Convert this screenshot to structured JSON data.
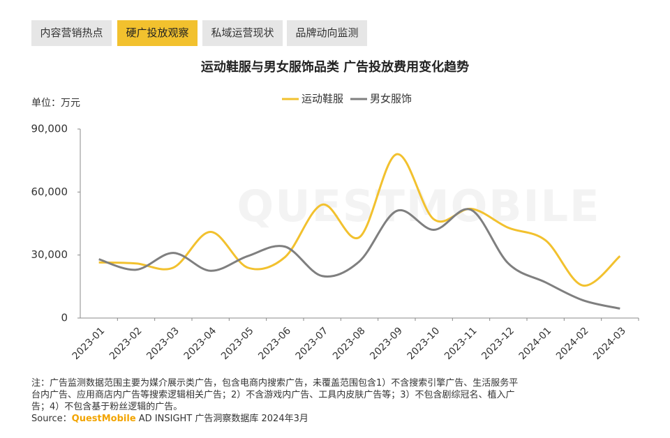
{
  "tabs": [
    {
      "label": "内容营销热点",
      "active": false
    },
    {
      "label": "硬广投放观察",
      "active": true
    },
    {
      "label": "私域运营现状",
      "active": false
    },
    {
      "label": "品牌动向监测",
      "active": false
    }
  ],
  "watermark": "QUESTMOBILE",
  "chart_data": {
    "type": "line",
    "title": "运动鞋服与男女服饰品类 广告投放费用变化趋势",
    "unit": "单位：万元",
    "categories": [
      "2023-01",
      "2023-02",
      "2023-03",
      "2023-04",
      "2023-05",
      "2023-06",
      "2023-07",
      "2023-08",
      "2023-09",
      "2023-10",
      "2023-11",
      "2023-12",
      "2024-01",
      "2024-02",
      "2024-03"
    ],
    "series": [
      {
        "name": "运动鞋服",
        "color": "#f2c12e",
        "values": [
          26500,
          26000,
          24000,
          41000,
          24000,
          29000,
          54000,
          38500,
          78000,
          47000,
          52000,
          43000,
          37000,
          15500,
          29500
        ]
      },
      {
        "name": "男女服饰",
        "color": "#7f7f7f",
        "values": [
          28000,
          23000,
          31000,
          22500,
          29500,
          34000,
          20000,
          27000,
          51000,
          42000,
          51500,
          26000,
          17000,
          8500,
          4500
        ]
      }
    ],
    "ylim": [
      0,
      90000
    ],
    "yticks": [
      0,
      {
        "value": 30000,
        "label": "30,000"
      },
      {
        "value": 60000,
        "label": "60,000"
      },
      {
        "value": 90000,
        "label": "90,000"
      }
    ],
    "smooth": true,
    "grid": false
  },
  "notes": [
    "注：广告监测数据范围主要为媒介展示类广告，包含电商内搜索广告，未覆盖范围包含1）不含搜索引擎广告、生活服务平",
    "台内广告、应用商店内广告等搜索逻辑相关广告；2）不含游戏内广告、工具内皮肤广告等；3）不包含剧综冠名、植入广",
    "告；4）不包含基于粉丝逻辑的广告。"
  ],
  "source": {
    "label": "Source：",
    "brand": "QuestMobile",
    "text": "AD INSIGHT 广告洞察数据库 2024年3月"
  }
}
